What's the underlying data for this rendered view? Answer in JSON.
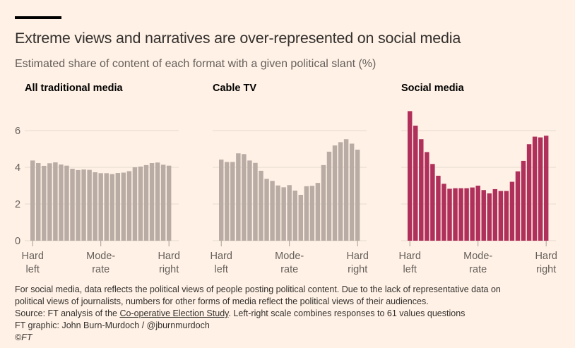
{
  "header": {
    "title": "Extreme views and narratives are over-represented on social media",
    "subtitle": "Estimated share of content of each format with a given political slant (%)"
  },
  "colors": {
    "background": "#fff1e5",
    "traditional_bar": "#b9aca4",
    "social_bar": "#b0305c",
    "gridline": "#e6d9ce",
    "text": "#33302e"
  },
  "chart_data": [
    {
      "type": "bar",
      "title": "All traditional media",
      "xlabel": "",
      "ylabel": "",
      "ylim": [
        0,
        7
      ],
      "yticks": [
        "0",
        "2",
        "4",
        "6"
      ],
      "ytick_values": [
        0,
        2,
        4,
        6
      ],
      "xtick_labels": [
        [
          "Hard",
          "left"
        ],
        [
          "Mode-",
          "rate"
        ],
        [
          "Hard",
          "right"
        ]
      ],
      "grid": true,
      "categories": [
        "1",
        "2",
        "3",
        "4",
        "5",
        "6",
        "7",
        "8",
        "9",
        "10",
        "11",
        "12",
        "13",
        "14",
        "15",
        "16",
        "17",
        "18",
        "19",
        "20",
        "21",
        "22",
        "23",
        "24",
        "25"
      ],
      "values": [
        4.37,
        4.23,
        4.08,
        4.22,
        4.27,
        4.15,
        4.09,
        3.92,
        3.85,
        3.88,
        3.86,
        3.73,
        3.68,
        3.68,
        3.63,
        3.69,
        3.71,
        3.79,
        4.0,
        4.04,
        4.12,
        4.23,
        4.26,
        4.14,
        4.09
      ],
      "color": "#b9aca4"
    },
    {
      "type": "bar",
      "title": "Cable TV",
      "xlabel": "",
      "ylabel": "",
      "ylim": [
        0,
        7
      ],
      "yticks": [],
      "ytick_values": [
        0,
        2,
        4,
        6
      ],
      "xtick_labels": [
        [
          "Hard",
          "left"
        ],
        [
          "Mode-",
          "rate"
        ],
        [
          "Hard",
          "right"
        ]
      ],
      "grid": true,
      "categories": [
        "1",
        "2",
        "3",
        "4",
        "5",
        "6",
        "7",
        "8",
        "9",
        "10",
        "11",
        "12",
        "13",
        "14",
        "15",
        "16",
        "17",
        "18",
        "19",
        "20",
        "21",
        "22",
        "23",
        "24",
        "25"
      ],
      "values": [
        4.42,
        4.29,
        4.29,
        4.76,
        4.72,
        4.37,
        4.24,
        3.81,
        3.37,
        3.26,
        3.01,
        2.91,
        3.03,
        2.73,
        2.5,
        2.97,
        2.99,
        3.15,
        4.12,
        4.85,
        5.19,
        5.37,
        5.53,
        5.29,
        4.96
      ],
      "color": "#b9aca4"
    },
    {
      "type": "bar",
      "title": "Social media",
      "xlabel": "",
      "ylabel": "",
      "ylim": [
        0,
        7
      ],
      "yticks": [],
      "ytick_values": [
        0,
        2,
        4,
        6
      ],
      "xtick_labels": [
        [
          "Hard",
          "left"
        ],
        [
          "Mode-",
          "rate"
        ],
        [
          "Hard",
          "right"
        ]
      ],
      "grid": true,
      "categories": [
        "1",
        "2",
        "3",
        "4",
        "5",
        "6",
        "7",
        "8",
        "9",
        "10",
        "11",
        "12",
        "13",
        "14",
        "15",
        "16",
        "17",
        "18",
        "19",
        "20",
        "21",
        "22",
        "23",
        "24",
        "25"
      ],
      "values": [
        7.06,
        6.27,
        5.53,
        4.83,
        4.18,
        3.54,
        3.1,
        2.83,
        2.86,
        2.86,
        2.86,
        2.9,
        3.0,
        2.76,
        2.58,
        2.81,
        2.71,
        2.71,
        3.21,
        3.78,
        4.35,
        5.26,
        5.67,
        5.63,
        5.72
      ],
      "color": "#b0305c"
    }
  ],
  "footer": {
    "note_line1": "For social media, data reflects the political views of people posting political content. Due to the lack of representative data on",
    "note_line2": "political views of journalists, numbers for other forms of media reflect the political views of their audiences.",
    "source_prefix": "Source: FT analysis of the ",
    "source_link": "Co-operative Election Study",
    "source_suffix": ". Left-right scale combines responses to 61 values questions",
    "credit": "FT graphic: John Burn-Murdoch / @jburnmurdoch",
    "copyright": "©FT"
  }
}
